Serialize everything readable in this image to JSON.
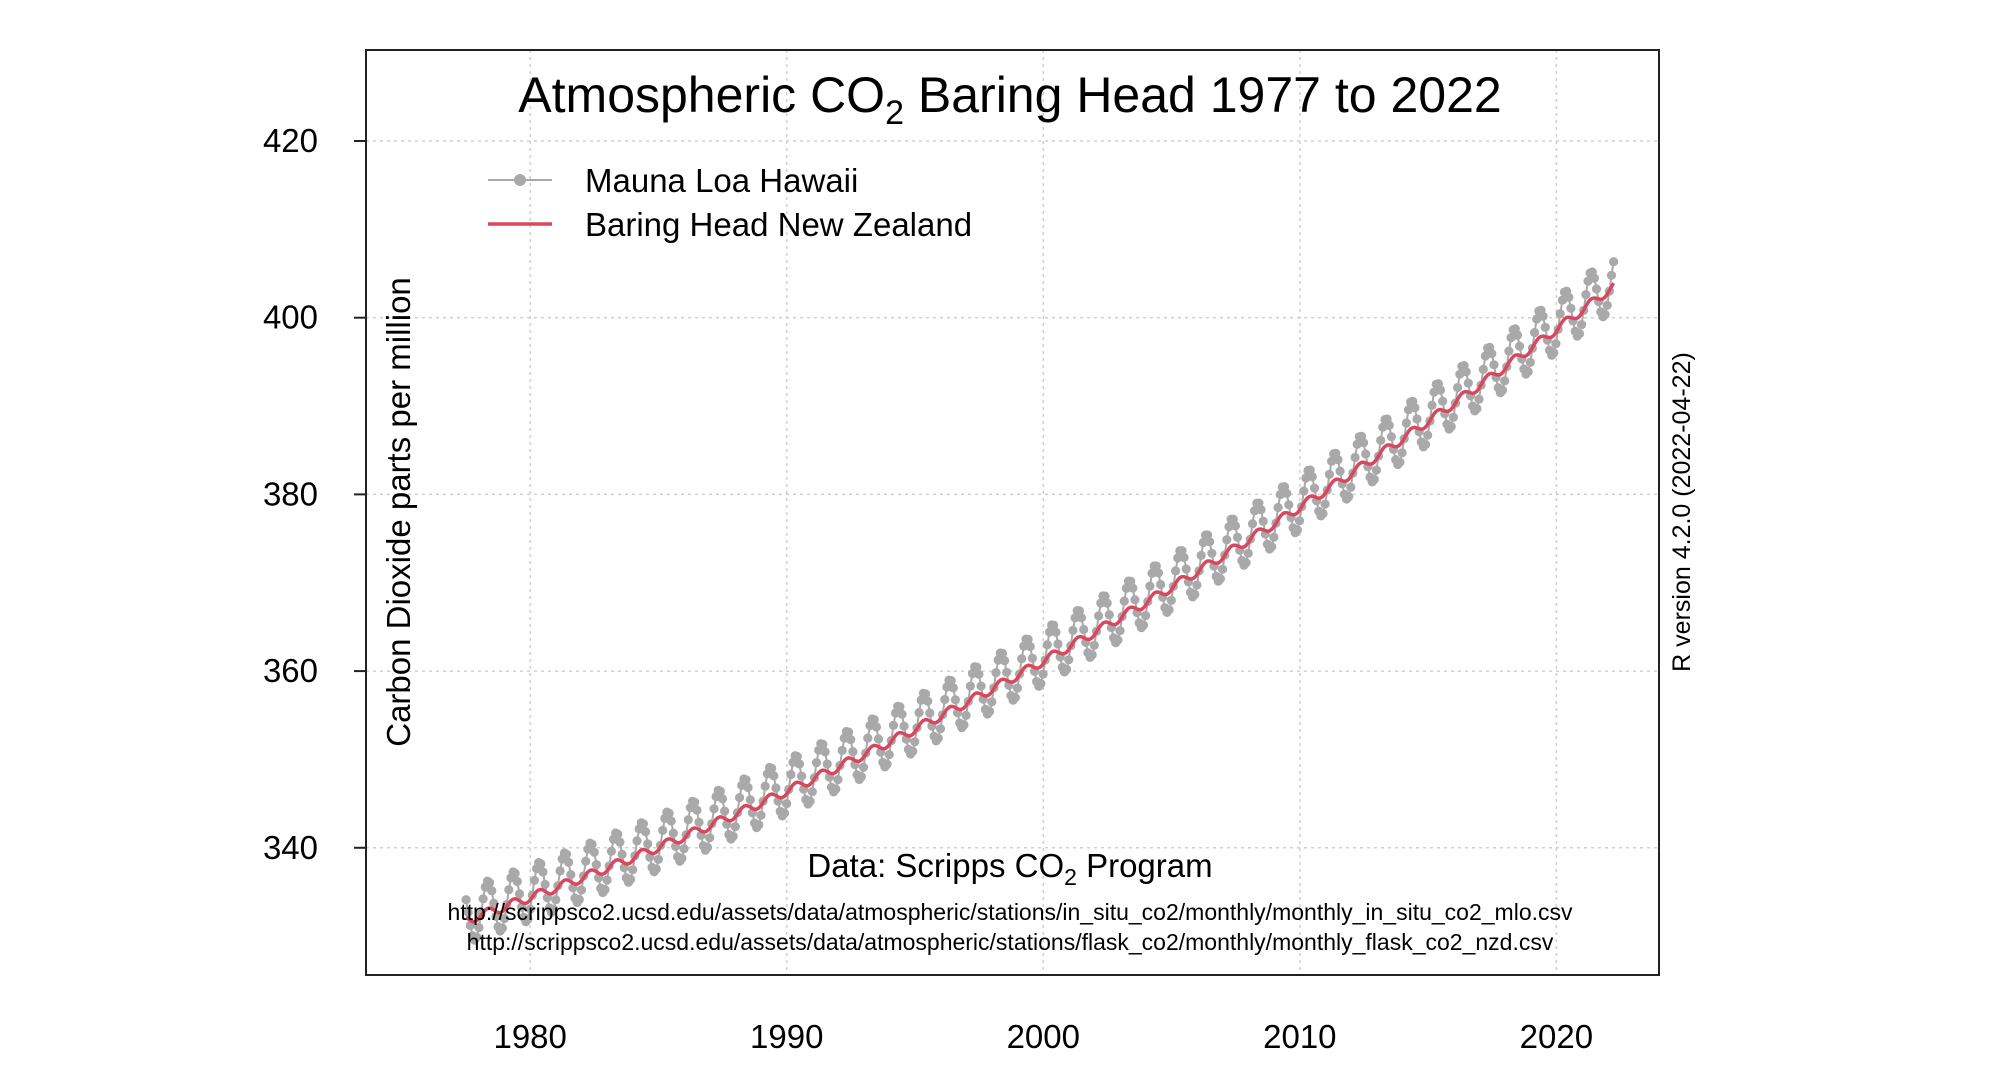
{
  "chart_data": {
    "type": "line",
    "title_main": "Atmospheric CO",
    "title_sub": "2",
    "title_rest": " Baring Head 1977 to 2022",
    "ylabel": "Carbon Dioxide parts per million",
    "right_note": "R version 4.2.0 (2022-04-22)",
    "source_main": "Data: Scripps CO",
    "source_sub": "2",
    "source_rest": " Program",
    "source_urls": [
      "http://scrippsco2.ucsd.edu/assets/data/atmospheric/stations/in_situ_co2/monthly/monthly_in_situ_co2_mlo.csv",
      "http://scrippsco2.ucsd.edu/assets/data/atmospheric/stations/flask_co2/monthly/monthly_flask_co2_nzd.csv"
    ],
    "xlim": [
      1973.6,
      2024.0
    ],
    "ylim": [
      325.6,
      430.3
    ],
    "x_ticks": [
      1980,
      1990,
      2000,
      2010,
      2020
    ],
    "y_ticks": [
      340,
      360,
      380,
      400,
      420
    ],
    "grid": true,
    "legend_position": "top-left",
    "series": [
      {
        "name": "Mauna Loa Hawaii",
        "color": "#a9a9a9",
        "marker": "point",
        "model": {
          "start_year": 1977.5,
          "end_year": 2022.25,
          "step_years": 0.0833,
          "base": 332.3,
          "linear": 1.0,
          "quadratic": 0.0135,
          "seasonal_amplitude": 3.1
        }
      },
      {
        "name": "Baring Head New Zealand",
        "color": "#d9475f",
        "marker": "line",
        "model": {
          "start_year": 1977.5,
          "end_year": 2022.25,
          "step_years": 0.0833,
          "base": 331.8,
          "linear": 1.0,
          "quadratic": 0.0135,
          "seasonal_amplitude": 0.5
        }
      }
    ]
  }
}
